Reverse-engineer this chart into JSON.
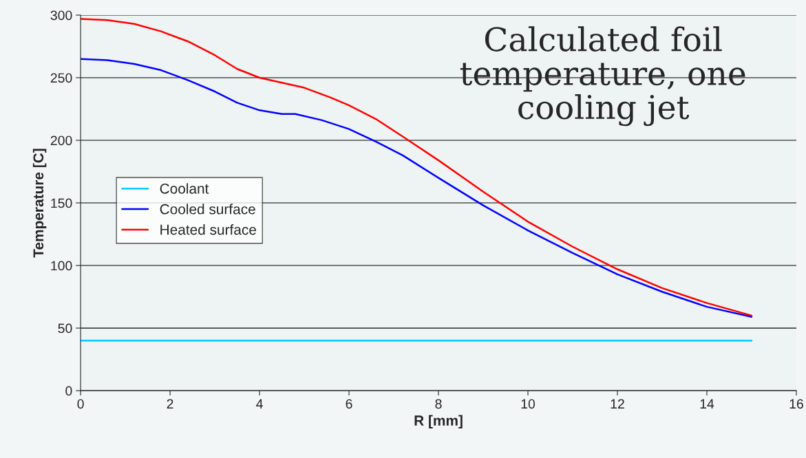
{
  "chart_data": {
    "type": "line",
    "title": "Calculated foil\ntemperature, one\ncooling jet",
    "xlabel": "R [mm]",
    "ylabel": "Temperature [C]",
    "xlim": [
      0,
      16
    ],
    "xticks": [
      0,
      2,
      4,
      6,
      8,
      10,
      12,
      14,
      16
    ],
    "ylim": [
      0,
      300
    ],
    "yticks": [
      0,
      50,
      100,
      150,
      200,
      250,
      300
    ],
    "grid": "y",
    "legend": "left",
    "marker": "none",
    "line_style": "solid",
    "series": [
      {
        "name": "Coolant",
        "color": "#00ccff",
        "x": [
          0,
          15
        ],
        "values": [
          40,
          40
        ]
      },
      {
        "name": "Cooled surface",
        "color": "#0000ff",
        "x": [
          0,
          0.6,
          1.2,
          1.8,
          2.4,
          3,
          3.5,
          4,
          4.5,
          4.8,
          5.4,
          6,
          6.6,
          7.2,
          8,
          9,
          10,
          11,
          12,
          13,
          14,
          15
        ],
        "values": [
          265,
          264,
          261,
          256,
          248,
          239,
          230,
          224,
          221,
          221,
          216,
          209,
          199,
          188,
          170,
          148,
          128,
          110,
          93,
          79,
          67,
          59
        ]
      },
      {
        "name": "Heated surface",
        "color": "#ff0000",
        "x": [
          0,
          0.6,
          1.2,
          1.8,
          2.4,
          3,
          3.5,
          4,
          4.5,
          5,
          5.6,
          6,
          6.6,
          7.2,
          8,
          9,
          10,
          11,
          12,
          13,
          14,
          15
        ],
        "values": [
          297,
          296,
          293,
          287,
          279,
          268,
          257,
          250,
          246,
          242,
          234,
          228,
          217,
          203,
          184,
          159,
          135,
          115,
          97,
          82,
          70,
          60
        ]
      }
    ]
  }
}
